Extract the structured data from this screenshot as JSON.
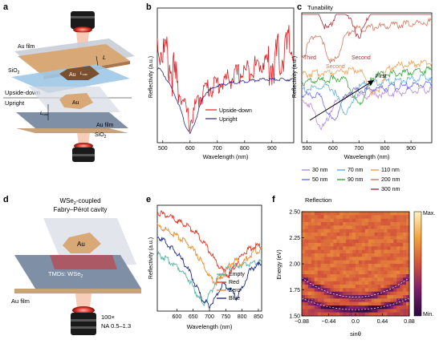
{
  "panels": {
    "a": {
      "letter": "a",
      "labels": {
        "au_film": "Au film",
        "sio2_top": "SiO",
        "sio2_sub": "2",
        "au_mid": "Au",
        "lcav": "L",
        "lcav_sub": "cav",
        "L": "L",
        "upside_down": "Upside-down",
        "upright": "Upright",
        "au_low": "Au",
        "lcav2": "L",
        "lcav2_sub": "cav",
        "au_film_low": "Au film",
        "sio2_low": "SiO",
        "sio2_low_sub": "2"
      }
    },
    "b": {
      "letter": "b"
    },
    "c": {
      "letter": "c",
      "title": "Tunability"
    },
    "d": {
      "letter": "d",
      "title_line1": "WSe",
      "title_sub": "2",
      "title_rest": "-coupled",
      "title_line2": "Fabry–Pérot cavity",
      "labels": {
        "au": "Au",
        "tmds": "TMDs: WSe",
        "tmds_sub": "2",
        "sio2": "SiO",
        "sio2_sub": "2",
        "au_film": "Au film",
        "objective1": "100×",
        "objective2": "NA 0.5–1.3"
      }
    },
    "e": {
      "letter": "e"
    },
    "f": {
      "letter": "f",
      "title": "Reflection"
    }
  },
  "colors": {
    "red": "#e8191e",
    "blue": "#2c2a8c",
    "gray_blue": "#6f7bc4",
    "c_30": "#b98ae6",
    "c_50": "#6b6ff0",
    "c_70": "#5fb0e6",
    "c_90": "#36a93a",
    "c_110": "#f0a050",
    "c_200": "#d07a5c",
    "c_300": "#a8323a",
    "e_empty": "#5ab3a0",
    "e_red": "#e03a2c",
    "e_zero": "#ec8a30",
    "e_blue": "#1f2b8c"
  },
  "chart_data": [
    {
      "panel": "b",
      "type": "line",
      "xlabel": "Wavelength (nm)",
      "ylabel": "Reflectivity (a.u.)",
      "xlim": [
        480,
        980
      ],
      "xticks": [
        500,
        600,
        700,
        800,
        900
      ],
      "series": [
        {
          "name": "Upside-down",
          "color": "#e8191e",
          "x": [
            480,
            500,
            520,
            540,
            560,
            580,
            600,
            620,
            640,
            660,
            700,
            740,
            780,
            820,
            860,
            900,
            940,
            980
          ],
          "y": [
            0.88,
            0.82,
            0.74,
            0.62,
            0.48,
            0.32,
            0.2,
            0.32,
            0.42,
            0.47,
            0.5,
            0.54,
            0.58,
            0.62,
            0.66,
            0.72,
            0.8,
            0.86
          ]
        },
        {
          "name": "Upright",
          "color": "#2c2a8c",
          "x": [
            480,
            500,
            520,
            540,
            560,
            580,
            600,
            620,
            640,
            660,
            700,
            740,
            780,
            820,
            860,
            900,
            940,
            980
          ],
          "y": [
            0.6,
            0.55,
            0.48,
            0.4,
            0.3,
            0.16,
            0.07,
            0.18,
            0.32,
            0.4,
            0.45,
            0.47,
            0.48,
            0.49,
            0.5,
            0.5,
            0.5,
            0.5
          ]
        }
      ]
    },
    {
      "panel": "c",
      "type": "line",
      "title": "Tunability",
      "xlabel": "Wavelength (nm)",
      "ylabel": "Reflectivity (a.u.)",
      "xlim": [
        480,
        980
      ],
      "xticks": [
        500,
        600,
        700,
        800,
        900
      ],
      "annotations": [
        "Third",
        "Second",
        "Second",
        "First"
      ],
      "series": [
        {
          "name": "30 nm",
          "color": "#b98ae6",
          "dip": 560,
          "offset": 0.0
        },
        {
          "name": "50 nm",
          "color": "#6b6ff0",
          "dip": 600,
          "offset": 0.05
        },
        {
          "name": "70 nm",
          "color": "#5fb0e6",
          "dip": 650,
          "offset": 0.1
        },
        {
          "name": "90 nm",
          "color": "#36a93a",
          "dip": 700,
          "offset": 0.16
        },
        {
          "name": "110 nm",
          "color": "#f0a050",
          "dip": 760,
          "offset": 0.22
        },
        {
          "name": "200 nm",
          "color": "#d07a5c",
          "dip": 600,
          "offset": 0.55
        },
        {
          "name": "300 nm",
          "color": "#a8323a",
          "dip": 700,
          "offset": 0.75
        }
      ]
    },
    {
      "panel": "e",
      "type": "line",
      "xlabel": "Wavelength (nm)",
      "ylabel": "Reflectivity (a.u.)",
      "xlim": [
        540,
        860
      ],
      "xticks": [
        600,
        650,
        700,
        750,
        800,
        850
      ],
      "series": [
        {
          "name": "Empty",
          "color": "#5ab3a0",
          "x": [
            540,
            560,
            580,
            600,
            620,
            640,
            660,
            680,
            700,
            720,
            740,
            760,
            780,
            800,
            820,
            840,
            860
          ],
          "y": [
            0.55,
            0.52,
            0.48,
            0.44,
            0.38,
            0.3,
            0.18,
            0.08,
            0.16,
            0.3,
            0.38,
            0.42,
            0.44,
            0.45,
            0.46,
            0.47,
            0.48
          ]
        },
        {
          "name": "Red",
          "color": "#e03a2c",
          "x": [
            540,
            560,
            580,
            600,
            620,
            640,
            660,
            680,
            700,
            720,
            740,
            760,
            780,
            800,
            820,
            840,
            860
          ],
          "y": [
            0.95,
            0.93,
            0.9,
            0.87,
            0.84,
            0.8,
            0.75,
            0.68,
            0.58,
            0.48,
            0.4,
            0.35,
            0.45,
            0.55,
            0.6,
            0.62,
            0.64
          ]
        },
        {
          "name": "Zero",
          "color": "#ec8a30",
          "x": [
            540,
            560,
            580,
            600,
            620,
            640,
            660,
            680,
            700,
            720,
            740,
            760,
            780,
            800,
            820,
            840,
            860
          ],
          "y": [
            0.82,
            0.79,
            0.76,
            0.72,
            0.68,
            0.63,
            0.56,
            0.46,
            0.34,
            0.28,
            0.34,
            0.44,
            0.5,
            0.46,
            0.53,
            0.58,
            0.6
          ]
        },
        {
          "name": "Blue",
          "color": "#1f2b8c",
          "x": [
            540,
            560,
            580,
            600,
            620,
            640,
            660,
            680,
            700,
            720,
            740,
            760,
            780,
            800,
            820,
            840,
            860
          ],
          "y": [
            0.72,
            0.68,
            0.62,
            0.56,
            0.48,
            0.38,
            0.24,
            0.12,
            0.06,
            0.16,
            0.26,
            0.24,
            0.14,
            0.22,
            0.38,
            0.44,
            0.46
          ]
        }
      ]
    },
    {
      "panel": "f",
      "type": "heatmap",
      "title": "Reflection",
      "xlabel": "sinθ",
      "ylabel": "Energy (eV)",
      "xlim": [
        -0.88,
        0.88
      ],
      "ylim": [
        1.5,
        2.5
      ],
      "xticks": [
        "−0.88",
        "−0.44",
        "0.0",
        "0.44",
        "0.88"
      ],
      "yticks": [
        "1.50",
        "1.75",
        "2.00",
        "2.25",
        "2.50"
      ],
      "colorbar": {
        "max": "Max.",
        "min": "Min."
      }
    }
  ],
  "legends": {
    "b": [
      "Upside-down",
      "Upright"
    ],
    "c": [
      "30 nm",
      "50 nm",
      "70 nm",
      "90 nm",
      "110 nm",
      "200 nm",
      "300 nm"
    ],
    "e": [
      "Empty",
      "Red",
      "Zero",
      "Blue"
    ]
  },
  "c_annot": {
    "third": "Third",
    "second_a": "Second",
    "second_b": "Second",
    "first": "First"
  }
}
